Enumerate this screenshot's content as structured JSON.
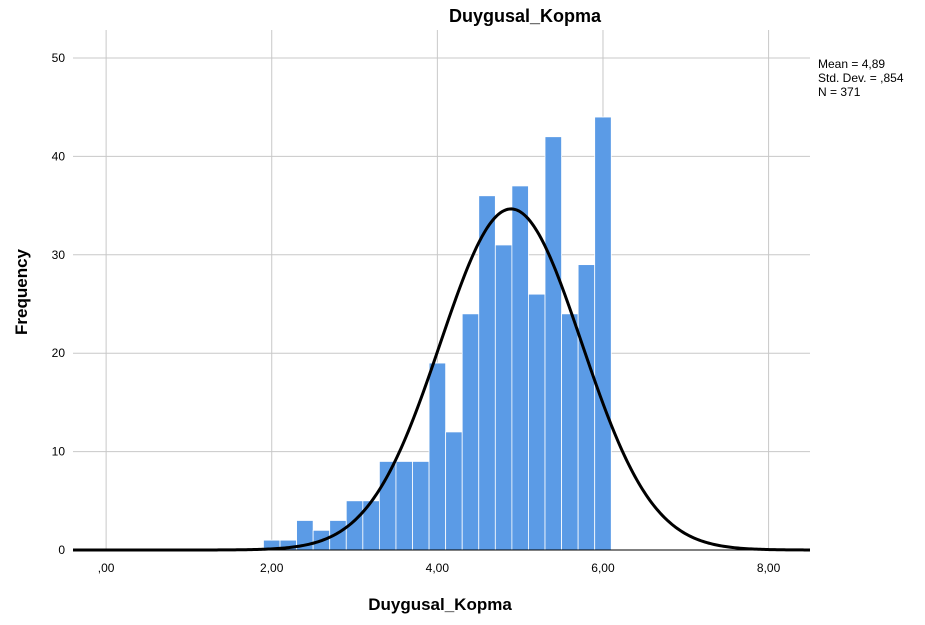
{
  "chart_data": {
    "type": "bar",
    "title": "Duygusal_Kopma",
    "xlabel": "Duygusal_Kopma",
    "ylabel": "Frequency",
    "xlim": [
      -0.4,
      8.5
    ],
    "ylim": [
      0,
      50
    ],
    "x_ticks": [
      0,
      2,
      4,
      6,
      8
    ],
    "x_tick_labels": [
      ",00",
      "2,00",
      "4,00",
      "6,00",
      "8,00"
    ],
    "y_ticks": [
      0,
      10,
      20,
      30,
      40,
      50
    ],
    "y_tick_labels": [
      "0",
      "10",
      "20",
      "30",
      "40",
      "50"
    ],
    "grid": true,
    "bin_width": 0.2,
    "bins": [
      {
        "x0": 1.9,
        "x1": 2.1,
        "count": 1
      },
      {
        "x0": 2.1,
        "x1": 2.3,
        "count": 1
      },
      {
        "x0": 2.3,
        "x1": 2.5,
        "count": 3
      },
      {
        "x0": 2.5,
        "x1": 2.7,
        "count": 2
      },
      {
        "x0": 2.7,
        "x1": 2.9,
        "count": 3
      },
      {
        "x0": 2.9,
        "x1": 3.1,
        "count": 5
      },
      {
        "x0": 3.1,
        "x1": 3.3,
        "count": 5
      },
      {
        "x0": 3.3,
        "x1": 3.5,
        "count": 9
      },
      {
        "x0": 3.5,
        "x1": 3.7,
        "count": 9
      },
      {
        "x0": 3.7,
        "x1": 3.9,
        "count": 9
      },
      {
        "x0": 3.9,
        "x1": 4.1,
        "count": 19
      },
      {
        "x0": 4.1,
        "x1": 4.3,
        "count": 12
      },
      {
        "x0": 4.3,
        "x1": 4.5,
        "count": 24
      },
      {
        "x0": 4.5,
        "x1": 4.7,
        "count": 36
      },
      {
        "x0": 4.7,
        "x1": 4.9,
        "count": 31
      },
      {
        "x0": 4.9,
        "x1": 5.1,
        "count": 37
      },
      {
        "x0": 5.1,
        "x1": 5.3,
        "count": 26
      },
      {
        "x0": 5.3,
        "x1": 5.5,
        "count": 42
      },
      {
        "x0": 5.5,
        "x1": 5.7,
        "count": 24
      },
      {
        "x0": 5.7,
        "x1": 5.9,
        "count": 29
      },
      {
        "x0": 5.9,
        "x1": 6.1,
        "count": 44
      }
    ],
    "normal_curve": {
      "mean": 4.89,
      "sd": 0.854,
      "n": 371
    },
    "stats_lines": [
      "Mean = 4,89",
      "Std. Dev. = ,854",
      "N = 371"
    ],
    "bar_color": "#5b9be6",
    "bar_stroke": "#ffffff",
    "grid_color": "#c8c8c8",
    "curve_color": "#000000",
    "legend_position": "top-right"
  }
}
